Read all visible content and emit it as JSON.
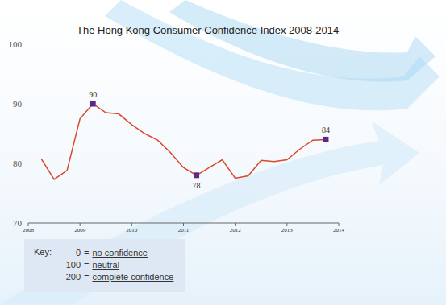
{
  "chart_data": {
    "type": "line",
    "title": "The Hong Kong Consumer Confidence Index 2008-2014",
    "x": [
      2008.25,
      2008.5,
      2008.75,
      2009,
      2009.25,
      2009.5,
      2009.75,
      2010,
      2010.25,
      2010.5,
      2010.75,
      2011,
      2011.25,
      2011.5,
      2011.75,
      2012,
      2012.25,
      2012.5,
      2012.75,
      2013,
      2013.25,
      2013.5,
      2013.75
    ],
    "values": [
      80.8,
      77.3,
      78.8,
      87.5,
      90,
      88.5,
      88.3,
      86.5,
      85,
      83.9,
      81.8,
      79.3,
      78,
      79.3,
      80.6,
      77.5,
      77.9,
      80.5,
      80.3,
      80.6,
      82.4,
      83.9,
      84
    ],
    "color": "#d9482b",
    "xlim": [
      2008,
      2014
    ],
    "xticks": [
      2008,
      2009,
      2010,
      2011,
      2012,
      2013,
      2014
    ],
    "ylim": [
      70,
      100
    ],
    "yticks": [
      70,
      80,
      90,
      100
    ],
    "grid": false,
    "annotations": [
      {
        "x": 2009.25,
        "y": 90
      },
      {
        "x": 2011.25,
        "y": 78
      },
      {
        "x": 2013.75,
        "y": 84
      }
    ],
    "key": {
      "title": "Key:",
      "sign": "=",
      "items": [
        {
          "value": 0,
          "label": "no confidence"
        },
        {
          "value": 100,
          "label": "neutral"
        },
        {
          "value": 200,
          "label": "complete confidence"
        }
      ]
    }
  }
}
